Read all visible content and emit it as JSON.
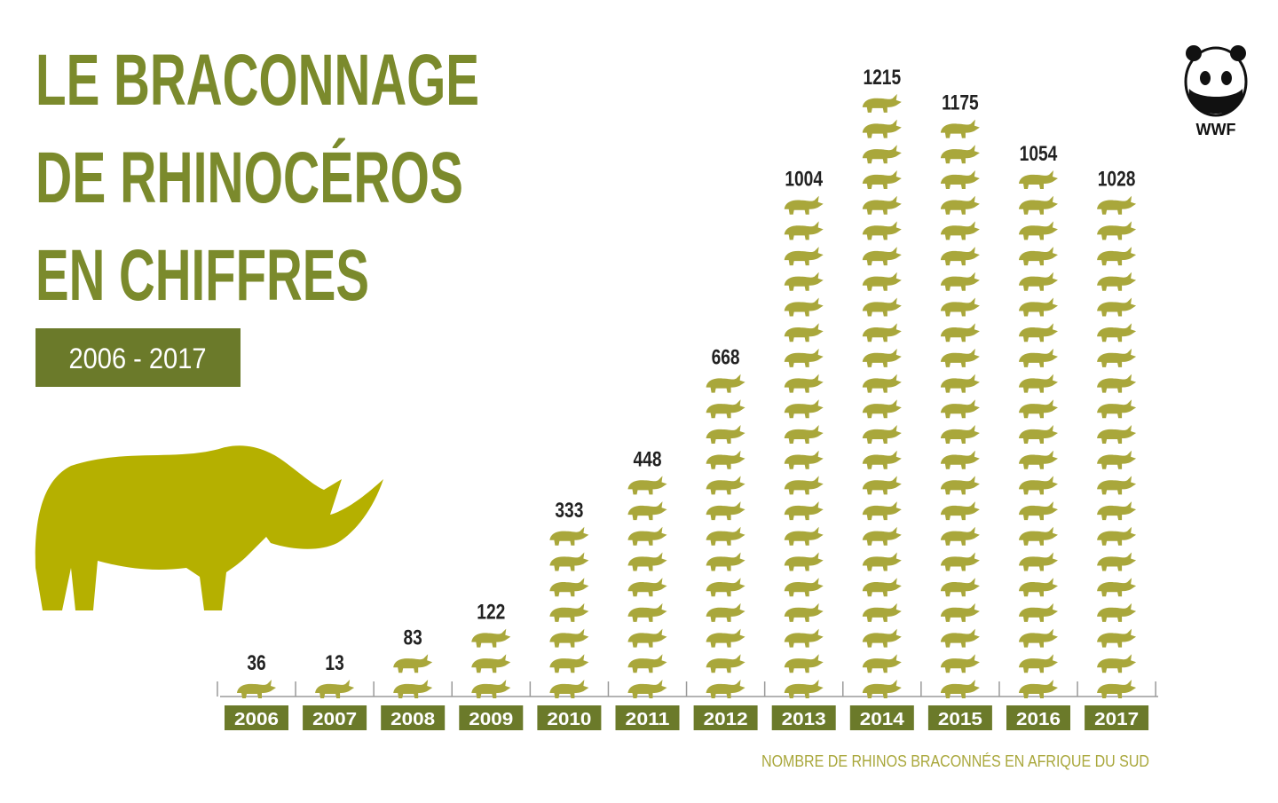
{
  "chart_data": {
    "type": "pictogram",
    "title": [
      "LE BRACONNAGE",
      "DE RHINOCÉROS",
      "EN CHIFFRES"
    ],
    "subtitle": "2006 - 2017",
    "caption": "NOMBRE DE RHINOS BRACONNÉS EN AFRIQUE DU SUD",
    "logo": "WWF",
    "categories": [
      "2006",
      "2007",
      "2008",
      "2009",
      "2010",
      "2011",
      "2012",
      "2013",
      "2014",
      "2015",
      "2016",
      "2017"
    ],
    "values": [
      36,
      13,
      83,
      122,
      333,
      448,
      668,
      1004,
      1215,
      1175,
      1054,
      1028
    ],
    "color": "#a9a73b"
  }
}
